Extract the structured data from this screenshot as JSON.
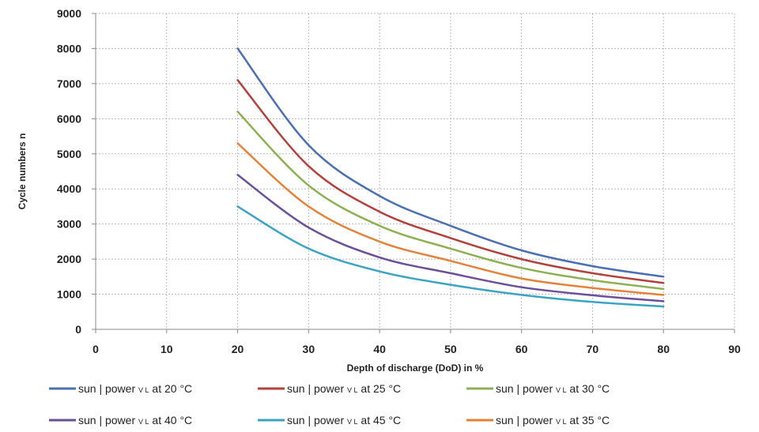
{
  "chart_data": {
    "type": "line",
    "xlabel": "Depth of discharge (DoD) in %",
    "ylabel": "Cycle numbers n",
    "xlim": [
      0,
      90
    ],
    "ylim": [
      0,
      9000
    ],
    "xticks": [
      0,
      10,
      20,
      30,
      40,
      50,
      60,
      70,
      80,
      90
    ],
    "yticks": [
      0,
      1000,
      2000,
      3000,
      4000,
      5000,
      6000,
      7000,
      8000,
      9000
    ],
    "grid": true,
    "legend_position": "bottom",
    "x": [
      20,
      30,
      40,
      50,
      60,
      70,
      80
    ],
    "series": [
      {
        "name": "sun | power v L at 20 °C",
        "legend_main": "sun | power ",
        "legend_small": "V L",
        "legend_tail": " at 20 °C",
        "color": "#4a6fb3",
        "values": [
          8000,
          5250,
          3800,
          2950,
          2250,
          1800,
          1500
        ]
      },
      {
        "name": "sun | power v L at 25 °C",
        "legend_main": "sun | power ",
        "legend_small": "V L",
        "legend_tail": " at 25 °C",
        "color": "#b2413c",
        "values": [
          7100,
          4650,
          3350,
          2600,
          2000,
          1600,
          1320
        ]
      },
      {
        "name": "sun | power v L at 30 °C",
        "legend_main": "sun | power ",
        "legend_small": "V L",
        "legend_tail": " at 30 °C",
        "color": "#8db052",
        "values": [
          6200,
          4100,
          2950,
          2300,
          1750,
          1400,
          1150
        ]
      },
      {
        "name": "sun | power v L at 40 °C",
        "legend_main": "sun | power ",
        "legend_small": "V L",
        "legend_tail": " at 40 °C",
        "color": "#6b4f9a",
        "values": [
          4400,
          2900,
          2050,
          1600,
          1200,
          970,
          800
        ]
      },
      {
        "name": "sun | power v L at 45 °C",
        "legend_main": "sun | power ",
        "legend_small": "V L",
        "legend_tail": " at 45 °C",
        "color": "#3ba3c4",
        "values": [
          3500,
          2300,
          1650,
          1270,
          980,
          780,
          650
        ]
      },
      {
        "name": "sun | power v L at 35 °C",
        "legend_main": "sun | power ",
        "legend_small": "V L",
        "legend_tail": " at 35 °C",
        "color": "#e5823a",
        "values": [
          5300,
          3500,
          2500,
          1950,
          1450,
          1180,
          980
        ]
      }
    ]
  }
}
